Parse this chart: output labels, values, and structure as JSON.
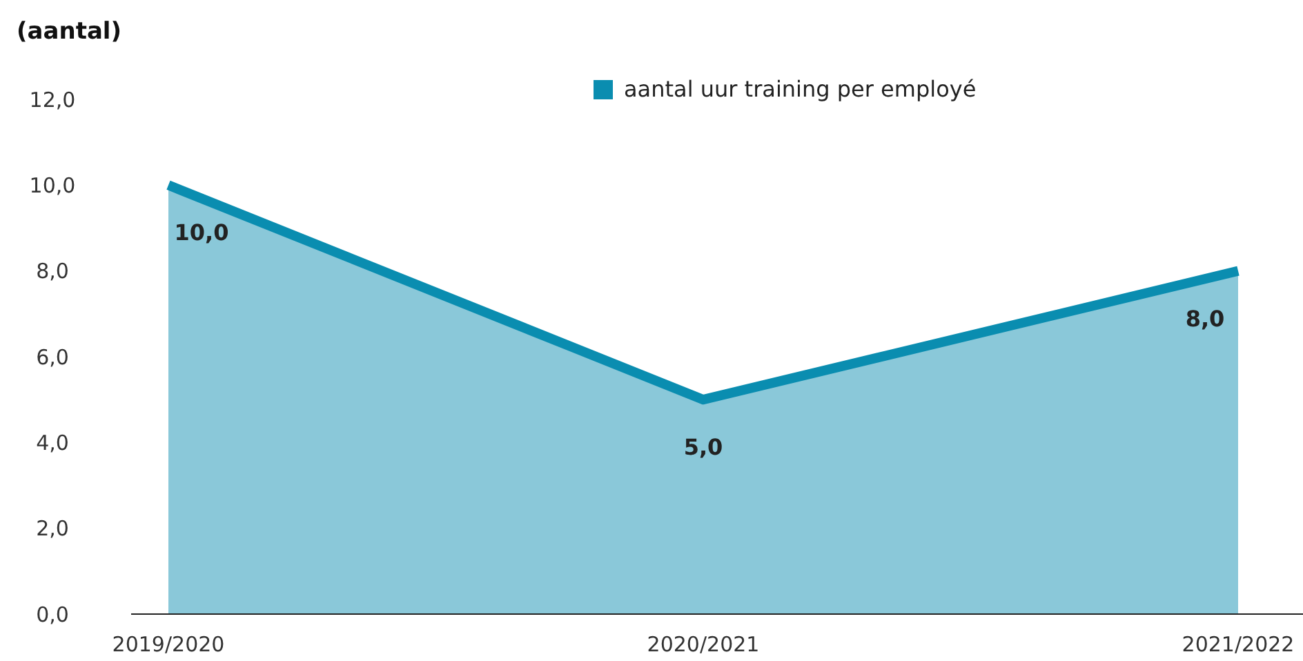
{
  "chart_data": {
    "type": "area",
    "ylabel": "(aantal)",
    "categories": [
      "2019/2020",
      "2020/2021",
      "2021/2022"
    ],
    "series": [
      {
        "name": "aantal uur training per employé",
        "color": "#0a8db0",
        "values": [
          10.0,
          5.0,
          8.0
        ]
      }
    ],
    "ylim": [
      0,
      12
    ],
    "yticks": [
      {
        "value": 0,
        "label": "0,0"
      },
      {
        "value": 2,
        "label": "2,0"
      },
      {
        "value": 4,
        "label": "4,0"
      },
      {
        "value": 6,
        "label": "6,0"
      },
      {
        "value": 8,
        "label": "8,0"
      },
      {
        "value": 10,
        "label": "10,0"
      },
      {
        "value": 12,
        "label": "12,0"
      }
    ],
    "value_labels": [
      "10,0",
      "5,0",
      "8,0"
    ],
    "legend": "top right",
    "grid": false
  }
}
